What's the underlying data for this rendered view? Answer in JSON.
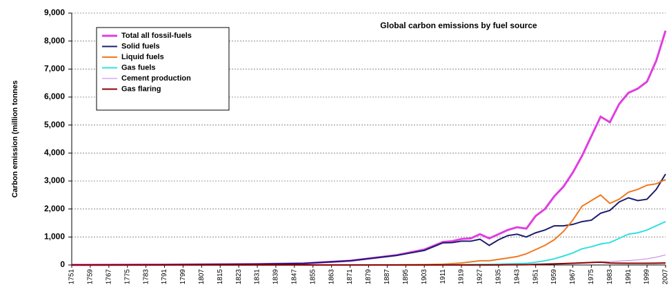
{
  "chart_data": {
    "type": "line",
    "title": "Global carbon emissions by fuel source",
    "y_label": "Carbon emission (million tonnes",
    "x": [
      1751,
      1791,
      1831,
      1851,
      1871,
      1891,
      1903,
      1911,
      1915,
      1919,
      1923,
      1927,
      1931,
      1935,
      1939,
      1943,
      1947,
      1951,
      1955,
      1959,
      1963,
      1967,
      1971,
      1975,
      1979,
      1983,
      1987,
      1991,
      1995,
      1999,
      2003,
      2007
    ],
    "series": [
      {
        "name": "Total all fossil-fuels",
        "color": "#e03ee0",
        "values": [
          3,
          10,
          30,
          55,
          150,
          350,
          550,
          820,
          850,
          930,
          950,
          1100,
          950,
          1100,
          1250,
          1350,
          1300,
          1750,
          2000,
          2450,
          2800,
          3300,
          3900,
          4600,
          5300,
          5100,
          5750,
          6150,
          6300,
          6550,
          7300,
          8370
        ]
      },
      {
        "name": "Solid fuels",
        "color": "#1c1c6e",
        "values": [
          3,
          10,
          30,
          55,
          150,
          340,
          520,
          790,
          800,
          850,
          850,
          920,
          700,
          900,
          1050,
          1100,
          1000,
          1150,
          1250,
          1400,
          1400,
          1450,
          1550,
          1600,
          1850,
          1950,
          2250,
          2400,
          2300,
          2350,
          2700,
          3250
        ]
      },
      {
        "name": "Liquid fuels",
        "color": "#f07820",
        "values": [
          0,
          0,
          0,
          0,
          0,
          5,
          15,
          30,
          50,
          70,
          110,
          150,
          150,
          200,
          250,
          300,
          400,
          550,
          700,
          900,
          1200,
          1600,
          2100,
          2300,
          2500,
          2200,
          2350,
          2600,
          2700,
          2850,
          2900,
          3050
        ]
      },
      {
        "name": "Gas fuels",
        "color": "#30e0e0",
        "values": [
          0,
          0,
          0,
          0,
          0,
          0,
          2,
          5,
          8,
          10,
          15,
          20,
          25,
          30,
          40,
          50,
          60,
          100,
          150,
          220,
          320,
          430,
          580,
          650,
          750,
          800,
          950,
          1100,
          1150,
          1250,
          1400,
          1550
        ]
      },
      {
        "name": "Cement production",
        "color": "#c080e0",
        "values": [
          0,
          0,
          0,
          0,
          0,
          0,
          0,
          0,
          0,
          0,
          5,
          10,
          10,
          12,
          15,
          15,
          20,
          30,
          40,
          50,
          60,
          70,
          85,
          100,
          110,
          120,
          140,
          160,
          180,
          220,
          280,
          360
        ]
      },
      {
        "name": "Gas flaring",
        "color": "#8b0000",
        "values": [
          0,
          0,
          0,
          0,
          0,
          0,
          0,
          0,
          0,
          0,
          0,
          0,
          0,
          0,
          5,
          5,
          10,
          20,
          30,
          40,
          50,
          60,
          75,
          90,
          100,
          70,
          65,
          60,
          60,
          60,
          65,
          70
        ]
      }
    ],
    "xlim": [
      1751,
      2007
    ],
    "xticks": [
      1751,
      1759,
      1767,
      1775,
      1783,
      1791,
      1799,
      1807,
      1815,
      1823,
      1831,
      1839,
      1847,
      1855,
      1863,
      1871,
      1879,
      1887,
      1895,
      1903,
      1911,
      1919,
      1927,
      1935,
      1943,
      1951,
      1959,
      1967,
      1975,
      1983,
      1991,
      1999,
      2007
    ],
    "ylim": [
      0,
      9000
    ],
    "yticks": [
      0,
      {
        "value": 1000,
        "label": "1,000"
      },
      {
        "value": 2000,
        "label": "2,000"
      },
      {
        "value": 3000,
        "label": "3,000"
      },
      {
        "value": 4000,
        "label": "4,000"
      },
      {
        "value": 5000,
        "label": "5,000"
      },
      {
        "value": 6000,
        "label": "6,000"
      },
      {
        "value": 7000,
        "label": "7,000"
      },
      {
        "value": 8000,
        "label": "8,000"
      },
      {
        "value": 9000,
        "label": "9,000"
      }
    ],
    "grid": true,
    "legend": "upper left"
  }
}
